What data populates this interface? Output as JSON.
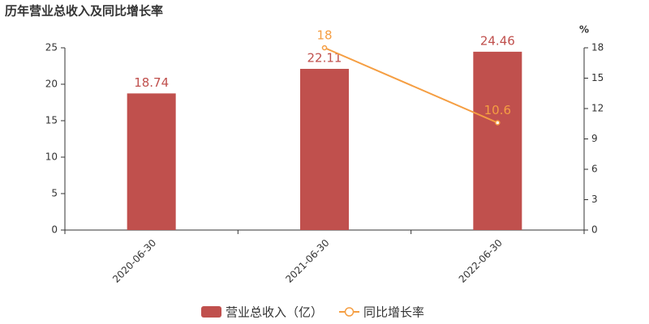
{
  "chart_data": {
    "type": "bar",
    "title": "历年营业总收入及同比增长率",
    "categories": [
      "2020-06-30",
      "2021-06-30",
      "2022-06-30"
    ],
    "series": [
      {
        "name": "营业总收入（亿）",
        "type": "bar",
        "color": "#c0504d",
        "values": [
          18.74,
          22.11,
          24.46
        ]
      },
      {
        "name": "同比增长率",
        "type": "line",
        "axis": "y2",
        "color": "#f59e42",
        "values": [
          null,
          18,
          10.6
        ]
      }
    ],
    "ylim": [
      0,
      25
    ],
    "yticks": [
      0,
      5,
      10,
      15,
      20,
      25
    ],
    "y2lim": [
      0,
      18
    ],
    "y2ticks": [
      0,
      3,
      6,
      9,
      12,
      15,
      18
    ],
    "y2label": "%",
    "legend": "bottom",
    "grid": false
  }
}
